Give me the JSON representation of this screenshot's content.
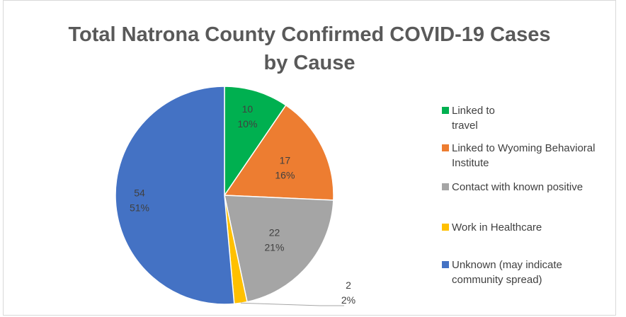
{
  "chart_data": {
    "type": "pie",
    "title_lines": [
      "Total Natrona County Confirmed COVID-19 Cases",
      "by Cause"
    ],
    "categories": [
      "Linked to travel",
      "Linked to Wyoming Behavioral Institute",
      "Contact with known positive",
      "Work in Healthcare",
      "Unknown (may indicate community spread)"
    ],
    "values": [
      10,
      17,
      22,
      2,
      54
    ],
    "percent_labels": [
      "10%",
      "16%",
      "21%",
      "2%",
      "51%"
    ],
    "value_labels": [
      "10",
      "17",
      "22",
      "2",
      "54"
    ],
    "colors": [
      "#00b050",
      "#ed7d31",
      "#a5a5a5",
      "#ffc000",
      "#4472c4"
    ],
    "legend_position": "right"
  },
  "legend": {
    "items": [
      {
        "lines": [
          "Linked to",
          "travel"
        ],
        "color": "#00b050"
      },
      {
        "lines": [
          "Linked to Wyoming Behavioral",
          "Institute"
        ],
        "color": "#ed7d31"
      },
      {
        "lines": [
          "Contact with known positive"
        ],
        "color": "#a5a5a5"
      },
      {
        "lines": [
          "Work in Healthcare"
        ],
        "color": "#ffc000"
      },
      {
        "lines": [
          "Unknown (may indicate",
          "community spread)"
        ],
        "color": "#4472c4"
      }
    ]
  }
}
